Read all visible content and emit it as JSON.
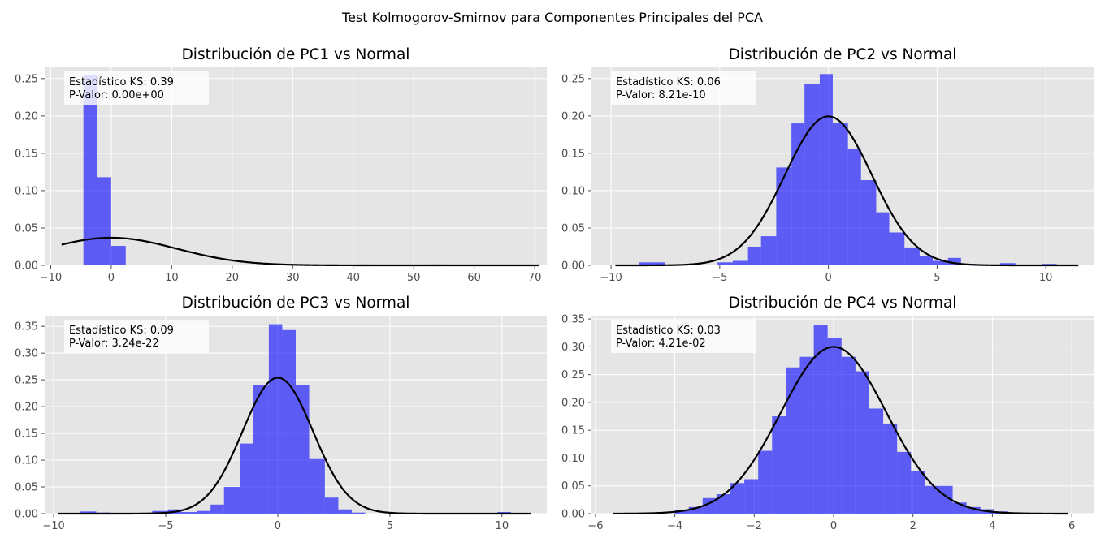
{
  "figure": {
    "title": "Test Kolmogorov-Smirnov para Componentes Principales del PCA"
  },
  "style": {
    "panel_bg": "#e5e5e5",
    "grid": "#ffffff",
    "hist_color": "#0000ff",
    "curve_color": "#000000"
  },
  "chart_data": [
    {
      "type": "bar",
      "title": "Distribución de PC1 vs Normal",
      "xlim": [
        -11.0,
        72.0
      ],
      "ylim": [
        0,
        0.265
      ],
      "xticks": [
        -10,
        0,
        10,
        20,
        30,
        40,
        50,
        60,
        70
      ],
      "yticks": [
        0.0,
        0.05,
        0.1,
        0.15,
        0.2,
        0.25
      ],
      "ytick_format": 2,
      "annotation": [
        "Estadístico KS: 0.39",
        "P-Valor: 0.00e+00"
      ],
      "normal": {
        "mean": 0.0,
        "std": 10.8,
        "x_range": [
          -8.2,
          70.8
        ]
      },
      "bins": [
        [
          -4.6,
          -2.3,
          0.255
        ],
        [
          -2.3,
          0.0,
          0.118
        ],
        [
          0.0,
          2.4,
          0.026
        ],
        [
          40.5,
          43.0,
          0.0012
        ],
        [
          52.5,
          55.0,
          0.0012
        ]
      ]
    },
    {
      "type": "bar",
      "title": "Distribución de PC2 vs Normal",
      "xlim": [
        -10.9,
        12.2
      ],
      "ylim": [
        0,
        0.265
      ],
      "xticks": [
        -10,
        -5,
        0,
        5,
        10
      ],
      "yticks": [
        0.0,
        0.05,
        0.1,
        0.15,
        0.2,
        0.25
      ],
      "ytick_format": 2,
      "annotation": [
        "Estadístico KS: 0.06",
        "P-Valor: 8.21e-10"
      ],
      "normal": {
        "mean": 0.0,
        "std": 2.0,
        "x_range": [
          -9.8,
          11.5
        ]
      },
      "bins": [
        [
          -8.7,
          -7.5,
          0.004
        ],
        [
          -5.1,
          -4.4,
          0.004
        ],
        [
          -4.4,
          -3.7,
          0.006
        ],
        [
          -3.7,
          -3.1,
          0.025
        ],
        [
          -3.1,
          -2.4,
          0.039
        ],
        [
          -2.4,
          -1.7,
          0.131
        ],
        [
          -1.7,
          -1.1,
          0.19
        ],
        [
          -1.1,
          -0.4,
          0.243
        ],
        [
          -0.4,
          0.2,
          0.256
        ],
        [
          0.2,
          0.9,
          0.19
        ],
        [
          0.9,
          1.5,
          0.156
        ],
        [
          1.5,
          2.2,
          0.114
        ],
        [
          2.2,
          2.8,
          0.071
        ],
        [
          2.8,
          3.5,
          0.044
        ],
        [
          3.5,
          4.2,
          0.024
        ],
        [
          4.2,
          4.8,
          0.012
        ],
        [
          4.8,
          5.5,
          0.006
        ],
        [
          5.5,
          6.1,
          0.01
        ],
        [
          6.1,
          6.8,
          0.002
        ],
        [
          7.9,
          8.6,
          0.003
        ],
        [
          9.8,
          10.5,
          0.002
        ]
      ]
    },
    {
      "type": "bar",
      "title": "Distribución de PC3 vs Normal",
      "xlim": [
        -10.4,
        12.0
      ],
      "ylim": [
        0,
        0.37
      ],
      "xticks": [
        -10,
        -5,
        0,
        5,
        10
      ],
      "yticks": [
        0.0,
        0.05,
        0.1,
        0.15,
        0.2,
        0.25,
        0.3,
        0.35
      ],
      "ytick_format": 2,
      "annotation": [
        "Estadístico KS: 0.09",
        "P-Valor: 3.24e-22"
      ],
      "normal": {
        "mean": 0.0,
        "std": 1.57,
        "x_range": [
          -9.8,
          11.3
        ]
      },
      "bins": [
        [
          -8.8,
          -8.1,
          0.004
        ],
        [
          -8.1,
          -7.5,
          0.002
        ],
        [
          -5.6,
          -4.9,
          0.005
        ],
        [
          -4.9,
          -4.3,
          0.008
        ],
        [
          -4.3,
          -3.6,
          0.003
        ],
        [
          -3.6,
          -3.0,
          0.005
        ],
        [
          -3.0,
          -2.4,
          0.017
        ],
        [
          -2.4,
          -1.7,
          0.05
        ],
        [
          -1.7,
          -1.1,
          0.131
        ],
        [
          -1.1,
          -0.4,
          0.241
        ],
        [
          -0.4,
          0.2,
          0.354
        ],
        [
          0.2,
          0.8,
          0.343
        ],
        [
          0.8,
          1.4,
          0.241
        ],
        [
          1.4,
          2.1,
          0.102
        ],
        [
          2.1,
          2.7,
          0.03
        ],
        [
          2.7,
          3.3,
          0.008
        ],
        [
          3.3,
          3.9,
          0.002
        ],
        [
          9.8,
          10.4,
          0.003
        ]
      ]
    },
    {
      "type": "bar",
      "title": "Distribución de PC4 vs Normal",
      "xlim": [
        -6.1,
        6.55
      ],
      "ylim": [
        0,
        0.356
      ],
      "xticks": [
        -6,
        -4,
        -2,
        0,
        2,
        4,
        6
      ],
      "yticks": [
        0.0,
        0.05,
        0.1,
        0.15,
        0.2,
        0.25,
        0.3,
        0.35
      ],
      "ytick_format": 2,
      "annotation": [
        "Estadístico KS: 0.03",
        "P-Valor: 4.21e-02"
      ],
      "normal": {
        "mean": 0.0,
        "std": 1.33,
        "x_range": [
          -5.55,
          5.9
        ]
      },
      "bins": [
        [
          -4.0,
          -3.65,
          0.006
        ],
        [
          -3.65,
          -3.3,
          0.012
        ],
        [
          -3.3,
          -2.95,
          0.028
        ],
        [
          -2.95,
          -2.6,
          0.035
        ],
        [
          -2.6,
          -2.25,
          0.055
        ],
        [
          -2.25,
          -1.9,
          0.062
        ],
        [
          -1.9,
          -1.55,
          0.113
        ],
        [
          -1.55,
          -1.2,
          0.175
        ],
        [
          -1.2,
          -0.85,
          0.263
        ],
        [
          -0.85,
          -0.5,
          0.282
        ],
        [
          -0.5,
          -0.15,
          0.339
        ],
        [
          -0.15,
          0.2,
          0.316
        ],
        [
          0.2,
          0.55,
          0.282
        ],
        [
          0.55,
          0.9,
          0.256
        ],
        [
          0.9,
          1.25,
          0.189
        ],
        [
          1.25,
          1.6,
          0.162
        ],
        [
          1.6,
          1.95,
          0.111
        ],
        [
          1.95,
          2.3,
          0.077
        ],
        [
          2.3,
          2.65,
          0.05
        ],
        [
          2.65,
          3.0,
          0.05
        ],
        [
          3.0,
          3.35,
          0.02
        ],
        [
          3.35,
          3.7,
          0.012
        ],
        [
          3.7,
          4.05,
          0.008
        ],
        [
          4.05,
          4.4,
          0.004
        ],
        [
          4.7,
          5.05,
          0.001
        ]
      ]
    }
  ]
}
